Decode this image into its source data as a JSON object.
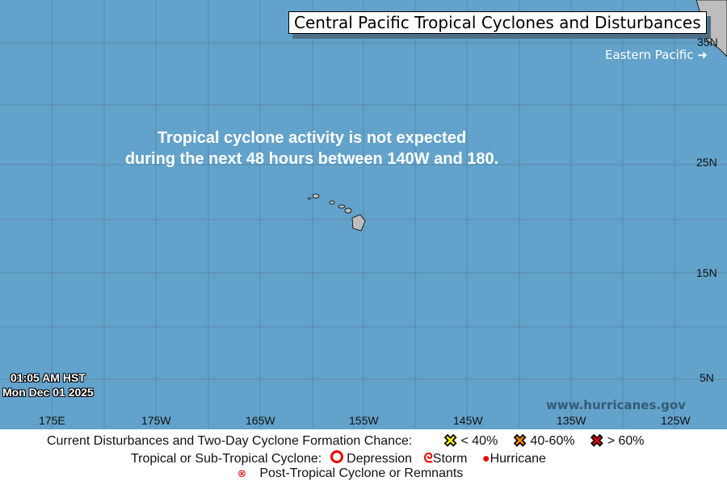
{
  "title": "Central Pacific Tropical Cyclones and Disturbances",
  "eastern_pacific_link": "Eastern Pacific",
  "message_line1": "Tropical cyclone activity is not expected",
  "message_line2": "during the next 48 hours between 140W and 180.",
  "timestamp_time": "01:05 AM HST",
  "timestamp_date": "Mon Dec 01 2025",
  "website": "www.hurricanes.gov",
  "lon_labels": [
    "175E",
    "175W",
    "165W",
    "155W",
    "145W",
    "135W",
    "125W"
  ],
  "lat_labels": [
    "35N",
    "25N",
    "15N",
    "5N"
  ],
  "legend": {
    "disturbances_label": "Current Disturbances and Two-Day Cyclone Formation Chance:",
    "low": "< 40%",
    "medium": "40-60%",
    "high": "> 60%",
    "colors": {
      "low": "#ffff00",
      "medium": "#ff8c00",
      "high": "#e00000"
    },
    "cyclone_label": "Tropical or Sub-Tropical Cyclone:",
    "depression": "Depression",
    "storm": "Storm",
    "hurricane": "Hurricane",
    "post_tropical": "Post-Tropical Cyclone or Remnants"
  }
}
